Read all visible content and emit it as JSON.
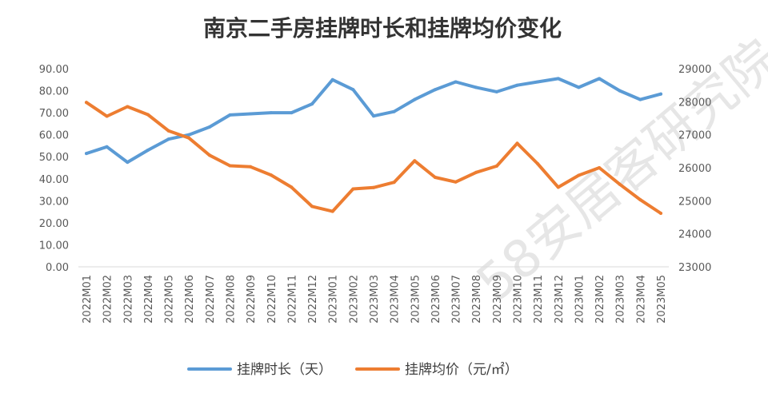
{
  "chart_data": {
    "type": "line",
    "title": "南京二手房挂牌时长和挂牌均价变化",
    "categories": [
      "2022M01",
      "2022M02",
      "2022M03",
      "2022M04",
      "2022M05",
      "2022M06",
      "2022M07",
      "2022M08",
      "2022M09",
      "2022M10",
      "2022M11",
      "2022M12",
      "2023M01",
      "2023M02",
      "2023M03",
      "2023M04",
      "2023M05",
      "2023M06",
      "2023M07",
      "2023M08",
      "2023M09",
      "2023M10",
      "2023M11",
      "2023M12",
      "2023M01",
      "2023M02",
      "2023M03",
      "2023M04",
      "2023M05"
    ],
    "series": [
      {
        "name": "挂牌时长（天）",
        "axis": "left",
        "color": "#5B9BD5",
        "values": [
          51.5,
          54.5,
          47.5,
          53,
          58,
          60,
          63.5,
          69,
          69.5,
          70,
          70,
          74,
          85,
          80.5,
          68.5,
          70.5,
          76,
          80.5,
          84,
          81.5,
          79.5,
          82.5,
          84,
          85.5,
          81.5,
          85.5,
          80,
          76,
          78.5
        ]
      },
      {
        "name": "挂牌均价（元/㎡）",
        "axis": "right",
        "color": "#ED7D31",
        "values": [
          27980,
          27560,
          27850,
          27610,
          27120,
          26900,
          26380,
          26060,
          26030,
          25780,
          25410,
          24830,
          24680,
          25360,
          25400,
          25560,
          26210,
          25710,
          25570,
          25860,
          26050,
          26740,
          26120,
          25410,
          25770,
          26000,
          25500,
          25030,
          24620
        ]
      }
    ],
    "y_left": {
      "min": 0,
      "max": 90,
      "step": 10,
      "tick_labels": [
        "0.00",
        "10.00",
        "20.00",
        "30.00",
        "40.00",
        "50.00",
        "60.00",
        "70.00",
        "80.00",
        "90.00"
      ]
    },
    "y_right": {
      "min": 23000,
      "max": 29000,
      "step": 1000,
      "tick_labels": [
        "23000",
        "24000",
        "25000",
        "26000",
        "27000",
        "28000",
        "29000"
      ]
    },
    "grid": false,
    "legend_position": "bottom",
    "watermark": "58安居客研究院"
  }
}
